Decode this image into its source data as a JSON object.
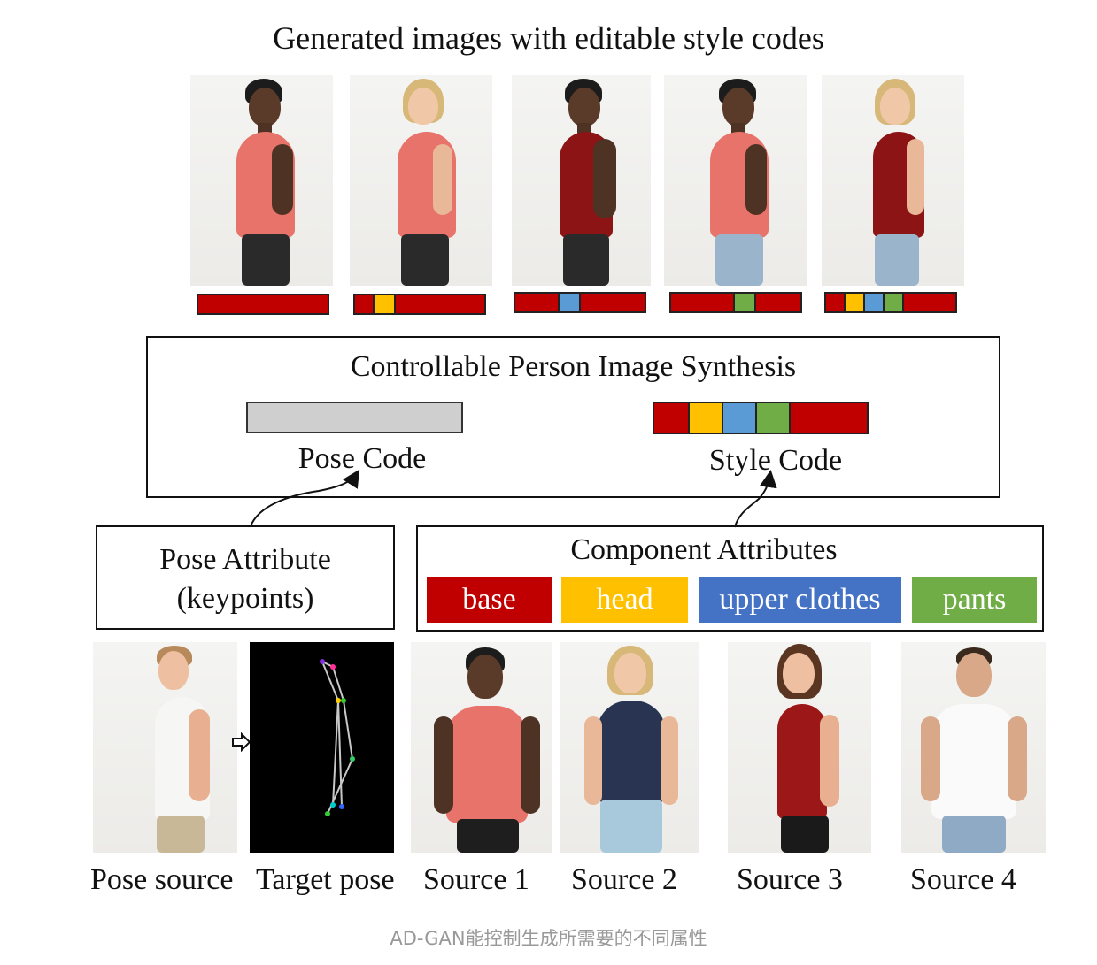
{
  "title": "Generated images with editable style codes",
  "synthesis_box": {
    "title": "Controllable Person Image Synthesis",
    "pose_code_label": "Pose Code",
    "style_code_label": "Style Code"
  },
  "pose_attribute": {
    "line1": "Pose Attribute",
    "line2": "(keypoints)"
  },
  "component_attributes": {
    "title": "Component Attributes",
    "chips": [
      {
        "label": "base",
        "color": "#c00000"
      },
      {
        "label": "head",
        "color": "#ffc000"
      },
      {
        "label": "upper clothes",
        "color": "#4472c4"
      },
      {
        "label": "pants",
        "color": "#70ad47"
      }
    ]
  },
  "style_code_colors": [
    "#c00000",
    "#ffc000",
    "#5b9bd5",
    "#70ad47",
    "#c00000"
  ],
  "generated_codes": [
    {
      "highlight": []
    },
    {
      "highlight": [
        "head"
      ]
    },
    {
      "highlight": [
        "upper"
      ]
    },
    {
      "highlight": [
        "pants"
      ]
    },
    {
      "highlight": [
        "head",
        "upper",
        "pants"
      ]
    }
  ],
  "captions": {
    "pose_source": "Pose source",
    "target_pose": "Target pose",
    "source1": "Source 1",
    "source2": "Source 2",
    "source3": "Source 3",
    "source4": "Source 4"
  },
  "footer": "AD-GAN能控制生成所需要的不同属性"
}
